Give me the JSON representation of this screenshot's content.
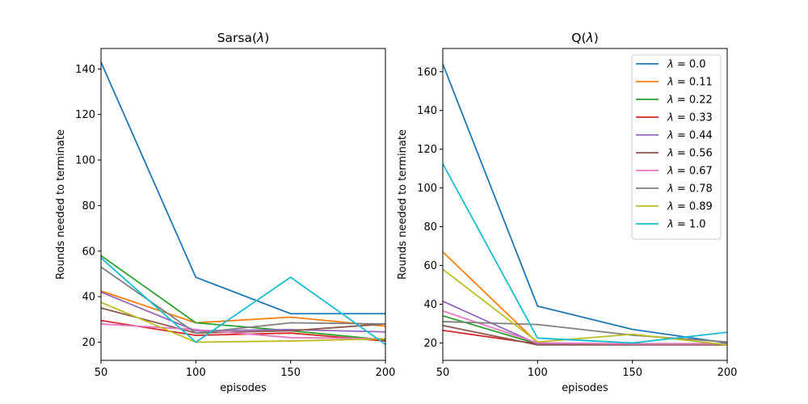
{
  "chart_data": [
    {
      "type": "line",
      "title": "Sarsa(λ)",
      "title_parts": [
        "Sarsa(",
        "λ",
        ")"
      ],
      "xlabel": "episodes",
      "ylabel": "Rounds needed to terminate",
      "x": [
        50,
        100,
        150,
        200
      ],
      "xlim": [
        50,
        200
      ],
      "ylim": [
        12,
        149
      ],
      "xticks": [
        50,
        100,
        150,
        200
      ],
      "yticks": [
        20,
        40,
        60,
        80,
        100,
        120,
        140
      ],
      "grid": false,
      "legend": null,
      "series": [
        {
          "name": "λ = 0.0",
          "color": "#1f77b4",
          "values": [
            143,
            48.5,
            32.5,
            32.5
          ]
        },
        {
          "name": "λ = 0.11",
          "color": "#ff7f0e",
          "values": [
            42.5,
            28.5,
            31,
            27
          ]
        },
        {
          "name": "λ = 0.22",
          "color": "#2ca02c",
          "values": [
            58,
            28.5,
            25,
            21
          ]
        },
        {
          "name": "λ = 0.33",
          "color": "#d62728",
          "values": [
            29.5,
            23,
            24,
            20.5
          ]
        },
        {
          "name": "λ = 0.44",
          "color": "#9467bd",
          "values": [
            42,
            25,
            25.5,
            24.5
          ]
        },
        {
          "name": "λ = 0.56",
          "color": "#8c564b",
          "values": [
            35,
            24,
            25,
            28
          ]
        },
        {
          "name": "λ = 0.67",
          "color": "#e377c2",
          "values": [
            28,
            25.5,
            22,
            21.5
          ]
        },
        {
          "name": "λ = 0.78",
          "color": "#7f7f7f",
          "values": [
            53,
            24,
            28.5,
            28
          ]
        },
        {
          "name": "λ = 0.89",
          "color": "#bcbd22",
          "values": [
            37.5,
            20,
            20.5,
            21.5
          ]
        },
        {
          "name": "λ = 1.0",
          "color": "#17becf",
          "values": [
            57,
            20,
            48.5,
            19
          ]
        }
      ]
    },
    {
      "type": "line",
      "title": "Q(λ)",
      "title_parts": [
        "Q(",
        "λ",
        ")"
      ],
      "xlabel": "episodes",
      "ylabel": "Rounds needed to terminate",
      "x": [
        50,
        100,
        150,
        200
      ],
      "xlim": [
        50,
        200
      ],
      "ylim": [
        11,
        172
      ],
      "xticks": [
        50,
        100,
        150,
        200
      ],
      "yticks": [
        20,
        40,
        60,
        80,
        100,
        120,
        140,
        160
      ],
      "grid": false,
      "legend": "top-right",
      "series": [
        {
          "name": "λ = 0.0",
          "color": "#1f77b4",
          "values": [
            164,
            39,
            27,
            20
          ]
        },
        {
          "name": "λ = 0.11",
          "color": "#ff7f0e",
          "values": [
            67,
            20,
            19.5,
            19.5
          ]
        },
        {
          "name": "λ = 0.22",
          "color": "#2ca02c",
          "values": [
            34,
            19.5,
            19.5,
            19.5
          ]
        },
        {
          "name": "λ = 0.33",
          "color": "#d62728",
          "values": [
            26.5,
            19.5,
            19.5,
            19.5
          ]
        },
        {
          "name": "λ = 0.44",
          "color": "#9467bd",
          "values": [
            41.5,
            19.5,
            19.5,
            19.5
          ]
        },
        {
          "name": "λ = 0.56",
          "color": "#8c564b",
          "values": [
            29,
            19,
            19,
            19
          ]
        },
        {
          "name": "λ = 0.67",
          "color": "#e377c2",
          "values": [
            36.5,
            20,
            19.5,
            19.5
          ]
        },
        {
          "name": "λ = 0.78",
          "color": "#7f7f7f",
          "values": [
            31,
            29.5,
            24,
            20.5
          ]
        },
        {
          "name": "λ = 0.89",
          "color": "#bcbd22",
          "values": [
            58,
            20.5,
            24.5,
            19
          ]
        },
        {
          "name": "λ = 1.0",
          "color": "#17becf",
          "values": [
            112.5,
            22.5,
            20,
            25.5
          ]
        }
      ]
    }
  ]
}
